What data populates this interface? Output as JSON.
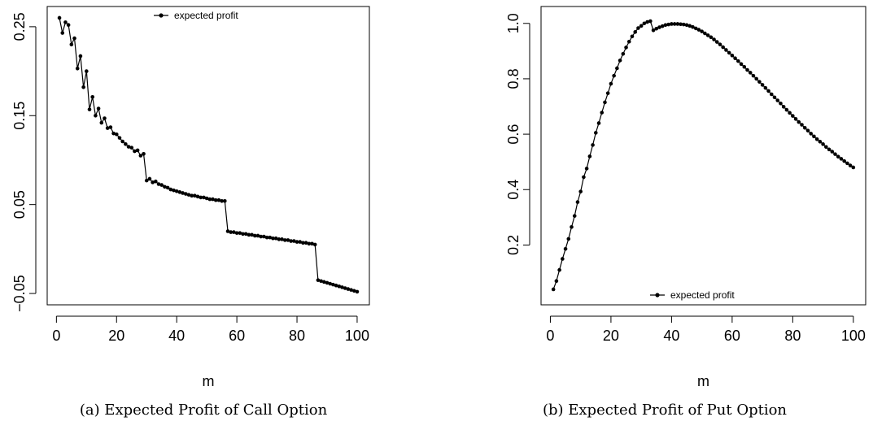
{
  "chart_data": [
    {
      "type": "line",
      "xlabel": "m",
      "ylabel": "",
      "caption": "(a) Expected Profit of Call Option",
      "legend": {
        "label": "expected profit",
        "placement": "top"
      },
      "xlim": [
        1,
        100
      ],
      "ylim": [
        -0.05,
        0.26
      ],
      "xticks": [
        0,
        20,
        40,
        60,
        80,
        100
      ],
      "yticks": [
        -0.05,
        0.05,
        0.15,
        0.25
      ],
      "ytick_labels": [
        "−0.05",
        "0.05",
        "0.15",
        "0.25"
      ],
      "series": [
        {
          "x": [
            1,
            2,
            3,
            4,
            5,
            6,
            7,
            8,
            9,
            10,
            11,
            12,
            13,
            14,
            15,
            16,
            17,
            18,
            19,
            20,
            21,
            22,
            23,
            24,
            25,
            26,
            27,
            28,
            29,
            30,
            31,
            32,
            33,
            34,
            35,
            36,
            37,
            38,
            39,
            40,
            41,
            42,
            43,
            44,
            45,
            46,
            47,
            48,
            49,
            50,
            51,
            52,
            53,
            54,
            55,
            56,
            57,
            58,
            59,
            60,
            61,
            62,
            63,
            64,
            65,
            66,
            67,
            68,
            69,
            70,
            71,
            72,
            73,
            74,
            75,
            76,
            77,
            78,
            79,
            80,
            81,
            82,
            83,
            84,
            85,
            86,
            87,
            88,
            89,
            90,
            91,
            92,
            93,
            94,
            95,
            96,
            97,
            98,
            99,
            100
          ],
          "y": [
            0.26,
            0.243,
            0.255,
            0.252,
            0.23,
            0.237,
            0.203,
            0.217,
            0.182,
            0.2,
            0.157,
            0.171,
            0.15,
            0.158,
            0.142,
            0.147,
            0.136,
            0.137,
            0.13,
            0.129,
            0.125,
            0.121,
            0.118,
            0.115,
            0.114,
            0.11,
            0.111,
            0.105,
            0.107,
            0.077,
            0.079,
            0.075,
            0.076,
            0.073,
            0.072,
            0.07,
            0.069,
            0.067,
            0.066,
            0.065,
            0.064,
            0.063,
            0.062,
            0.061,
            0.06,
            0.06,
            0.059,
            0.058,
            0.058,
            0.057,
            0.056,
            0.056,
            0.055,
            0.055,
            0.054,
            0.054,
            0.02,
            0.019,
            0.019,
            0.018,
            0.018,
            0.017,
            0.017,
            0.016,
            0.016,
            0.015,
            0.015,
            0.014,
            0.014,
            0.013,
            0.013,
            0.012,
            0.012,
            0.011,
            0.011,
            0.01,
            0.01,
            0.009,
            0.009,
            0.008,
            0.008,
            0.007,
            0.007,
            0.006,
            0.006,
            0.005,
            -0.035,
            -0.036,
            -0.037,
            -0.038,
            -0.039,
            -0.04,
            -0.041,
            -0.042,
            -0.043,
            -0.044,
            -0.045,
            -0.046,
            -0.047,
            -0.048
          ]
        }
      ]
    },
    {
      "type": "line",
      "xlabel": "m",
      "ylabel": "",
      "caption": "(b) Expected Profit of Put Option",
      "legend": {
        "label": "expected profit",
        "placement": "bottom"
      },
      "xlim": [
        1,
        100
      ],
      "ylim": [
        0.025,
        1.02
      ],
      "xticks": [
        0,
        20,
        40,
        60,
        80,
        100
      ],
      "yticks": [
        0.2,
        0.4,
        0.6,
        0.8,
        1.0
      ],
      "ytick_labels": [
        "0.2",
        "0.4",
        "0.6",
        "0.8",
        "1.0"
      ],
      "series": [
        {
          "x": [
            1,
            2,
            3,
            4,
            5,
            6,
            7,
            8,
            9,
            10,
            11,
            12,
            13,
            14,
            15,
            16,
            17,
            18,
            19,
            20,
            21,
            22,
            23,
            24,
            25,
            26,
            27,
            28,
            29,
            30,
            31,
            32,
            33,
            34,
            35,
            36,
            37,
            38,
            39,
            40,
            41,
            42,
            43,
            44,
            45,
            46,
            47,
            48,
            49,
            50,
            51,
            52,
            53,
            54,
            55,
            56,
            57,
            58,
            59,
            60,
            61,
            62,
            63,
            64,
            65,
            66,
            67,
            68,
            69,
            70,
            71,
            72,
            73,
            74,
            75,
            76,
            77,
            78,
            79,
            80,
            81,
            82,
            83,
            84,
            85,
            86,
            87,
            88,
            89,
            90,
            91,
            92,
            93,
            94,
            95,
            96,
            97,
            98,
            99,
            100
          ],
          "y": [
            0.04,
            0.07,
            0.11,
            0.15,
            0.186,
            0.222,
            0.265,
            0.305,
            0.355,
            0.393,
            0.445,
            0.476,
            0.52,
            0.561,
            0.605,
            0.64,
            0.678,
            0.715,
            0.748,
            0.782,
            0.811,
            0.838,
            0.866,
            0.89,
            0.913,
            0.934,
            0.953,
            0.969,
            0.983,
            0.991,
            1.0,
            1.005,
            1.008,
            0.975,
            0.981,
            0.986,
            0.99,
            0.994,
            0.996,
            0.998,
            0.998,
            0.998,
            0.997,
            0.996,
            0.994,
            0.991,
            0.987,
            0.982,
            0.977,
            0.971,
            0.964,
            0.957,
            0.95,
            0.942,
            0.933,
            0.924,
            0.914,
            0.904,
            0.894,
            0.884,
            0.874,
            0.864,
            0.853,
            0.843,
            0.832,
            0.822,
            0.811,
            0.8,
            0.789,
            0.778,
            0.767,
            0.756,
            0.744,
            0.733,
            0.722,
            0.711,
            0.699,
            0.688,
            0.677,
            0.666,
            0.655,
            0.644,
            0.634,
            0.623,
            0.613,
            0.602,
            0.592,
            0.582,
            0.573,
            0.564,
            0.554,
            0.545,
            0.537,
            0.528,
            0.519,
            0.511,
            0.503,
            0.495,
            0.487,
            0.48
          ]
        }
      ]
    }
  ]
}
